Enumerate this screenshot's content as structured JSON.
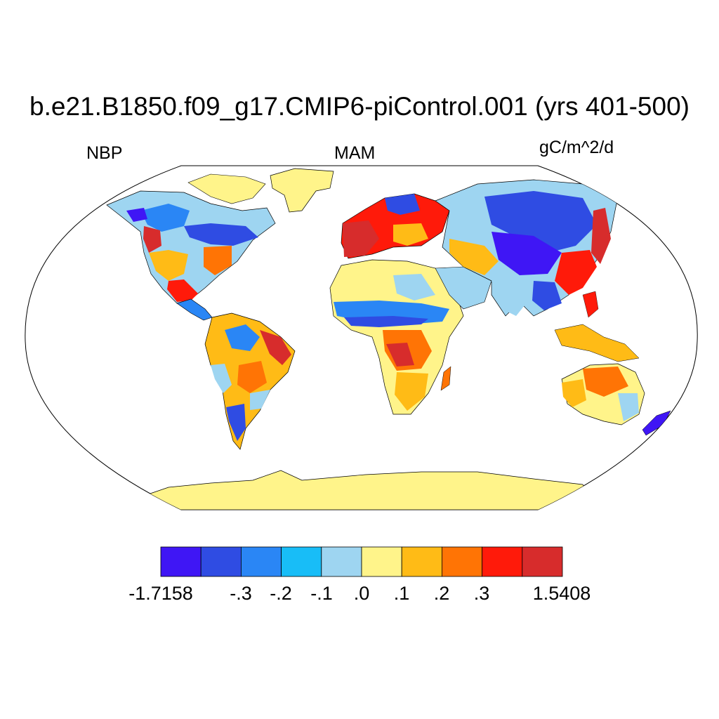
{
  "title": "b.e21.B1850.f09_g17.CMIP6-piControl.001 (yrs 401-500)",
  "left_label": "NBP",
  "center_label": "MAM",
  "right_label": "gC/m^2/d",
  "colorbar": {
    "colors": [
      "#3f16f5",
      "#2f4ce3",
      "#2a86f5",
      "#18bdf7",
      "#9ed5f1",
      "#fff48a",
      "#ffbb16",
      "#ff7405",
      "#ff1a0a",
      "#d72c2c"
    ],
    "labels": [
      "-1.7158",
      "-.3",
      "-.2",
      "-.1",
      ".0",
      ".1",
      ".2",
      ".3",
      "1.5408"
    ]
  },
  "map": {
    "projection": "Robinson",
    "variable": "Net Biome Production",
    "land_color": "#fff48a",
    "ocean_color": "#ffffff"
  }
}
